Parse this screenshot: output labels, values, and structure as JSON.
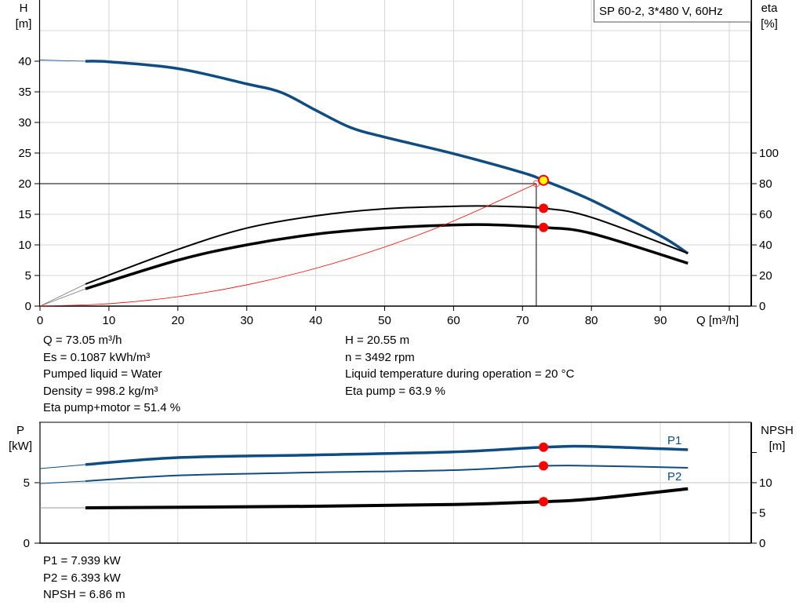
{
  "chart_data": [
    {
      "type": "line",
      "title": "SP 60-2, 3*480 V, 60Hz",
      "xlabel": "Q [m³/h]",
      "ylabel_left": [
        "H",
        "[m]"
      ],
      "ylabel_right": [
        "eta",
        "[%]"
      ],
      "xlim": [
        0,
        103
      ],
      "ylim_left": [
        0,
        50
      ],
      "ylim_right": [
        0,
        256
      ],
      "x_ticks": [
        0,
        10,
        20,
        30,
        40,
        50,
        60,
        70,
        80,
        90
      ],
      "y_ticks_left": [
        0,
        5,
        10,
        15,
        20,
        25,
        30,
        35,
        40
      ],
      "y_ticks_right": [
        0,
        20,
        40,
        60,
        80,
        100
      ],
      "grid": true,
      "series": [
        {
          "id": "head",
          "axis": "left",
          "color": "#0f4c81",
          "x": [
            0,
            6.6,
            10,
            20,
            30,
            35,
            40,
            45,
            50,
            60,
            70,
            73.05,
            80,
            90,
            94
          ],
          "y": [
            40.2,
            40.0,
            39.9,
            38.8,
            36.3,
            34.9,
            32.0,
            29.2,
            27.6,
            24.9,
            21.8,
            20.55,
            17.3,
            11.5,
            8.6
          ]
        },
        {
          "id": "eta-pump",
          "axis": "right",
          "color": "#000000",
          "x": [
            0,
            6.6,
            20,
            30,
            40,
            50,
            60,
            65,
            73.05,
            80,
            94
          ],
          "y": [
            0,
            14.4,
            37,
            51,
            59,
            63.6,
            65.2,
            65.4,
            63.9,
            58,
            34.5
          ]
        },
        {
          "id": "eta-pump-motor",
          "axis": "right",
          "color": "#000000",
          "x": [
            0,
            6.6,
            20,
            30,
            40,
            50,
            60,
            65,
            73.05,
            80,
            94
          ],
          "y": [
            0,
            11.3,
            30,
            40,
            47,
            51,
            53,
            53.2,
            51.4,
            47.5,
            28
          ]
        },
        {
          "id": "system-curve",
          "axis": "left",
          "color": "#ff0000",
          "x": [
            0,
            10,
            20,
            30,
            40,
            50,
            60,
            72
          ],
          "y": [
            0,
            0.39,
            1.54,
            3.47,
            6.17,
            9.65,
            13.9,
            20
          ]
        }
      ],
      "duty_point": {
        "Q": 73.05,
        "H": 20.55,
        "eta_pump": 63.9,
        "eta_pump_motor": 51.4
      },
      "guide_point": {
        "Q": 72,
        "H": 20
      }
    },
    {
      "type": "line",
      "ylabel_left": [
        "P",
        "[kW]"
      ],
      "ylabel_right": [
        "NPSH",
        "[m]"
      ],
      "xlim": [
        0,
        103
      ],
      "ylim_left": [
        0,
        10
      ],
      "ylim_right": [
        0,
        20
      ],
      "y_ticks_left": [
        0,
        5
      ],
      "y_ticks_right": [
        0,
        5,
        10
      ],
      "grid": true,
      "series": [
        {
          "id": "P1",
          "name": "P1",
          "axis": "left",
          "color": "#0f4c81",
          "x": [
            0,
            6.6,
            20,
            40,
            60,
            73.05,
            80,
            94
          ],
          "y": [
            6.17,
            6.5,
            7.08,
            7.3,
            7.55,
            7.939,
            8.0,
            7.73
          ]
        },
        {
          "id": "P2",
          "name": "P2",
          "axis": "left",
          "color": "#0f4c81",
          "x": [
            0,
            6.6,
            20,
            40,
            60,
            73.05,
            80,
            94
          ],
          "y": [
            4.93,
            5.13,
            5.6,
            5.85,
            6.04,
            6.393,
            6.4,
            6.23
          ]
        },
        {
          "id": "NPSH",
          "axis": "right",
          "color": "#000000",
          "x": [
            0,
            6.6,
            40,
            60,
            73.05,
            80,
            94
          ],
          "y": [
            5.84,
            5.84,
            6.1,
            6.4,
            6.86,
            7.3,
            9.0
          ]
        }
      ],
      "duty_Q": 73.05
    }
  ],
  "info_left": [
    "Q = 73.05 m³/h",
    "Es = 0.1087 kWh/m³",
    "Pumped liquid = Water",
    "Density = 998.2 kg/m³",
    "Eta pump+motor = 51.4 %"
  ],
  "info_right": [
    "H = 20.55 m",
    "n = 3492 rpm",
    "Liquid temperature during operation = 20 °C",
    "Eta pump = 63.9 %"
  ],
  "info_bottom": [
    "P1 = 7.939 kW",
    "P2 = 6.393 kW",
    "NPSH = 6.86 m"
  ]
}
